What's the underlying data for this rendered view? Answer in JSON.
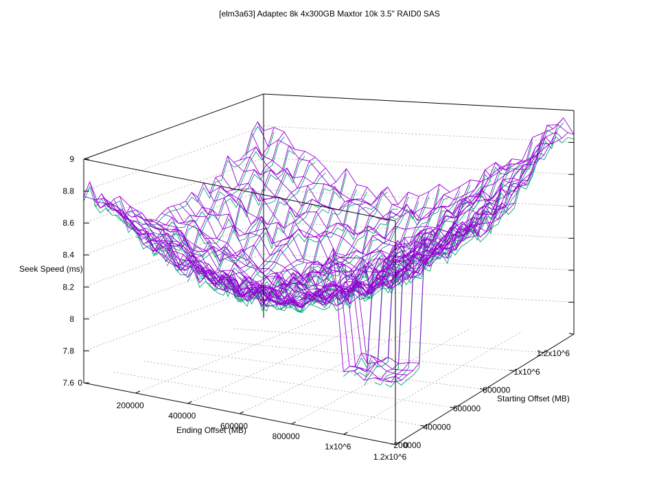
{
  "chart_data": {
    "type": "surface",
    "title": "[elm3a63] Adaptec 8k 4x300GB Maxtor 10k 3.5\" RAID0 SAS",
    "xlabel": "Ending Offset (MB)",
    "ylabel": "Starting Offset (MB)",
    "zlabel": "Seek Speed (ms)",
    "x_range": [
      0,
      1200000
    ],
    "y_range": [
      0,
      1200000
    ],
    "z_range": [
      7.6,
      9.0
    ],
    "x_ticks": [
      "200000",
      "400000",
      "600000",
      "800000",
      "1x10^6",
      "1.2x10^6"
    ],
    "y_ticks": [
      "0",
      "200000",
      "400000",
      "600000",
      "800000",
      "1x10^6",
      "1.2x10^6"
    ],
    "z_ticks": [
      "7.6",
      "7.8",
      "8",
      "8.2",
      "8.4",
      "8.6",
      "8.8",
      "9"
    ],
    "grid": true,
    "colors": {
      "top_surface": "#9400d3",
      "under_surface": "#009e73"
    },
    "surface_description": "Bowl-shaped seek-time surface: about 8.75 ms at the far back edge and 8.8-8.9 ms at the right corner, dipping to about 8.0-8.1 ms in the middle, with a sharp minimum near 7.8 ms close to the front corner.",
    "z_samples": {
      "corner_back_left": 8.75,
      "corner_back_right": 8.9,
      "corner_front_left": 8.7,
      "center": 8.05,
      "front_corner_min": 7.8
    }
  }
}
